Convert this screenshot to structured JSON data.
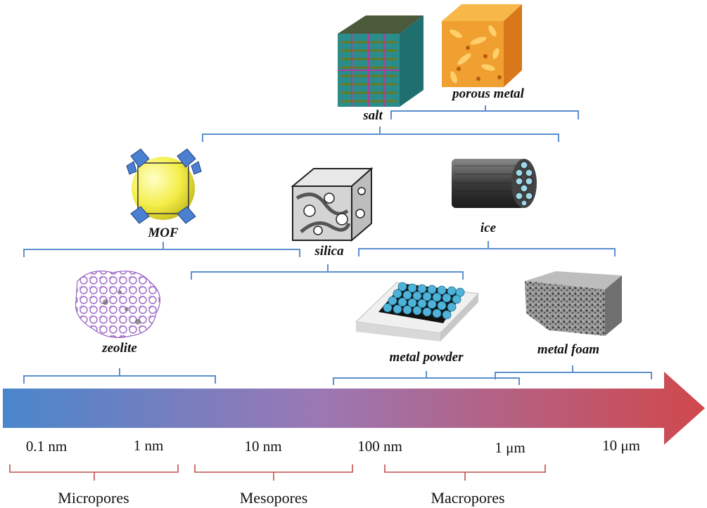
{
  "materials": {
    "salt": "salt",
    "porous_metal": "porous metal",
    "mof": "MOF",
    "silica": "silica",
    "ice": "ice",
    "zeolite": "zeolite",
    "metal_powder": "metal powder",
    "metal_foam": "metal foam"
  },
  "scale": {
    "t1": "0.1 nm",
    "t2": "1 nm",
    "t3": "10 nm",
    "t4": "100 nm",
    "t5": "1 μm",
    "t6": "10 μm"
  },
  "ranges": {
    "micro": "Micropores",
    "meso": "Mesopores",
    "macro": "Macropores"
  },
  "colors": {
    "arrow_start": "#4a86cc",
    "arrow_mid": "#9b78b4",
    "arrow_end": "#d0484c",
    "material_bracket": "#5b8fd0",
    "range_bracket": "#c0504d"
  }
}
